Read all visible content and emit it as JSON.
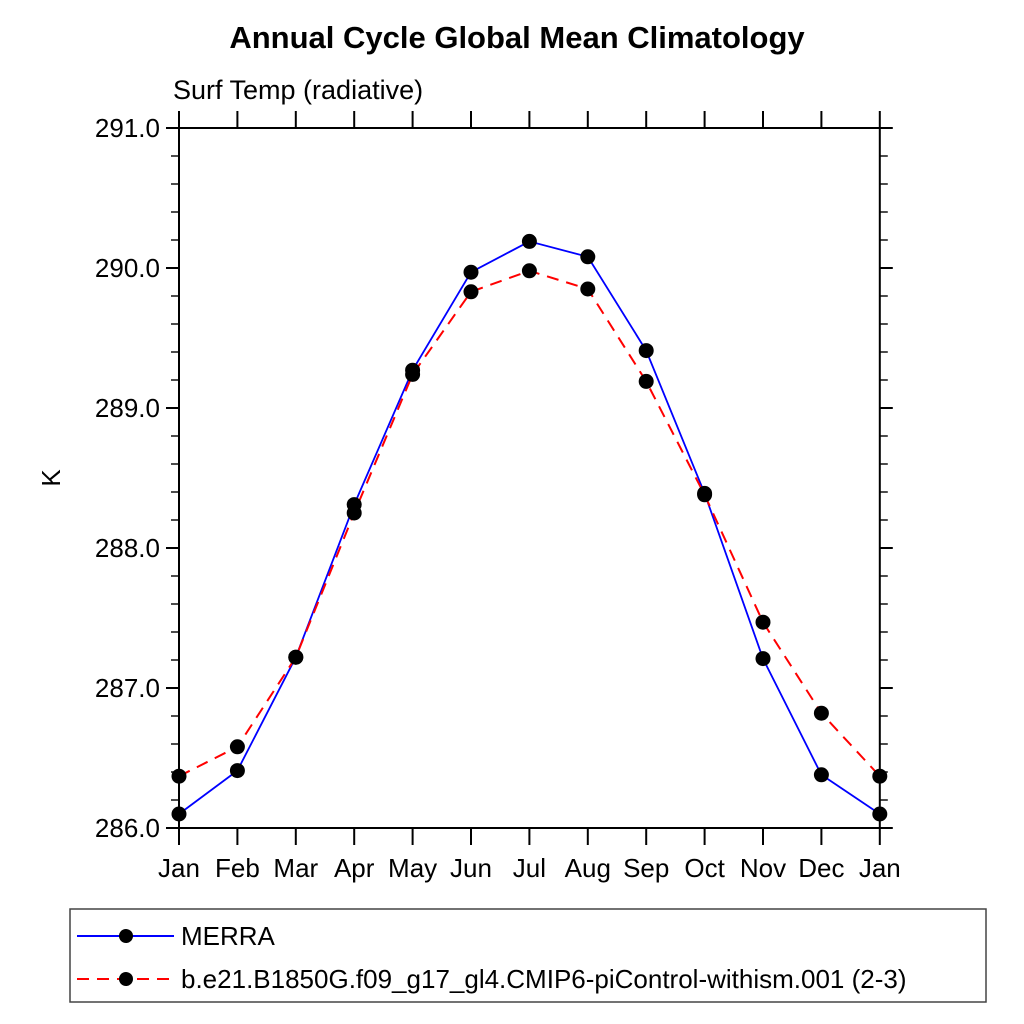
{
  "chart": {
    "title": "Annual Cycle Global Mean Climatology",
    "subtitle": "Surf Temp (radiative)",
    "y_axis_label": "K"
  },
  "chart_data": {
    "type": "line",
    "title": "Annual Cycle Global Mean Climatology",
    "subtitle": "Surf Temp (radiative)",
    "xlabel": "",
    "ylabel": "K",
    "categories": [
      "Jan",
      "Feb",
      "Mar",
      "Apr",
      "May",
      "Jun",
      "Jul",
      "Aug",
      "Sep",
      "Oct",
      "Nov",
      "Dec",
      "Jan"
    ],
    "series": [
      {
        "name": "MERRA",
        "color": "#0000ff",
        "line_style": "solid",
        "marker": "filled-circle",
        "marker_color": "#000000",
        "values": [
          286.1,
          286.41,
          287.22,
          288.31,
          289.27,
          289.97,
          290.19,
          290.08,
          289.41,
          288.39,
          287.21,
          286.38,
          286.1
        ]
      },
      {
        "name": "b.e21.B1850G.f09_g17_gl4.CMIP6-piControl-withism.001 (2-3)",
        "color": "#ff0000",
        "line_style": "dashed",
        "marker": "filled-circle",
        "marker_color": "#000000",
        "values": [
          286.37,
          286.58,
          287.22,
          288.25,
          289.24,
          289.83,
          289.98,
          289.85,
          289.19,
          288.38,
          287.47,
          286.82,
          286.37
        ]
      }
    ],
    "ylim": [
      286.0,
      291.0
    ],
    "y_major_step": 1.0,
    "y_minor_step": 0.2,
    "y_tick_labels": [
      "286.0",
      "287.0",
      "288.0",
      "289.0",
      "290.0",
      "291.0"
    ],
    "grid": false,
    "legend_position": "bottom-left-box",
    "axis_color": "#000000"
  }
}
